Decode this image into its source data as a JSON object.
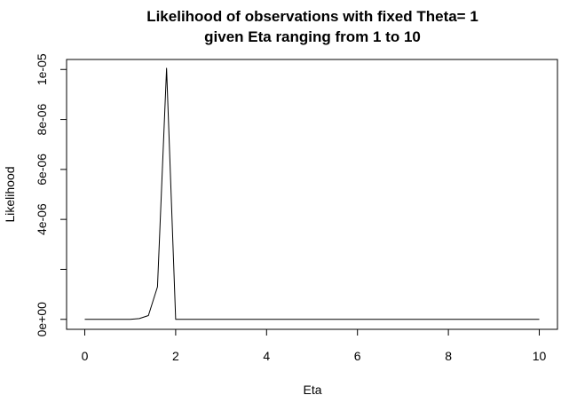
{
  "chart_data": {
    "type": "line",
    "title_line1": "Likelihood of observations with fixed Theta= 1",
    "title_line2": "given Eta ranging from 1 to 10",
    "xlabel": "Eta",
    "ylabel": "Likelihood",
    "xlim": [
      -0.4,
      10.4
    ],
    "ylim": [
      -4e-07,
      1.04e-05
    ],
    "x_ticks": [
      {
        "value": 0,
        "label": "0"
      },
      {
        "value": 2,
        "label": "2"
      },
      {
        "value": 4,
        "label": "4"
      },
      {
        "value": 6,
        "label": "6"
      },
      {
        "value": 8,
        "label": "8"
      },
      {
        "value": 10,
        "label": "10"
      }
    ],
    "y_ticks": [
      {
        "value": 0,
        "label": "0e+00"
      },
      {
        "value": 2e-06,
        "label": ""
      },
      {
        "value": 4e-06,
        "label": "4e-06"
      },
      {
        "value": 6e-06,
        "label": "6e-06"
      },
      {
        "value": 8e-06,
        "label": "8e-06"
      },
      {
        "value": 1e-05,
        "label": "1e-05"
      }
    ],
    "grid": false,
    "series": [
      {
        "color": "#000000",
        "x": [
          0,
          0.2,
          0.4,
          0.6,
          0.8,
          1.0,
          1.2,
          1.4,
          1.6,
          1.8,
          2.0,
          2.2,
          2.4,
          2.6,
          2.8,
          3.0,
          3.5,
          4.0,
          4.5,
          5.0,
          5.5,
          6.0,
          6.5,
          7.0,
          7.5,
          8.0,
          8.5,
          9.0,
          9.5,
          10.0
        ],
        "y": [
          0,
          0,
          0,
          0,
          0,
          0,
          3e-08,
          1.5e-07,
          1.3e-06,
          1.005e-05,
          0,
          0,
          0,
          0,
          0,
          0,
          0,
          0,
          0,
          0,
          0,
          0,
          0,
          0,
          0,
          0,
          0,
          0,
          0,
          0
        ]
      }
    ]
  }
}
